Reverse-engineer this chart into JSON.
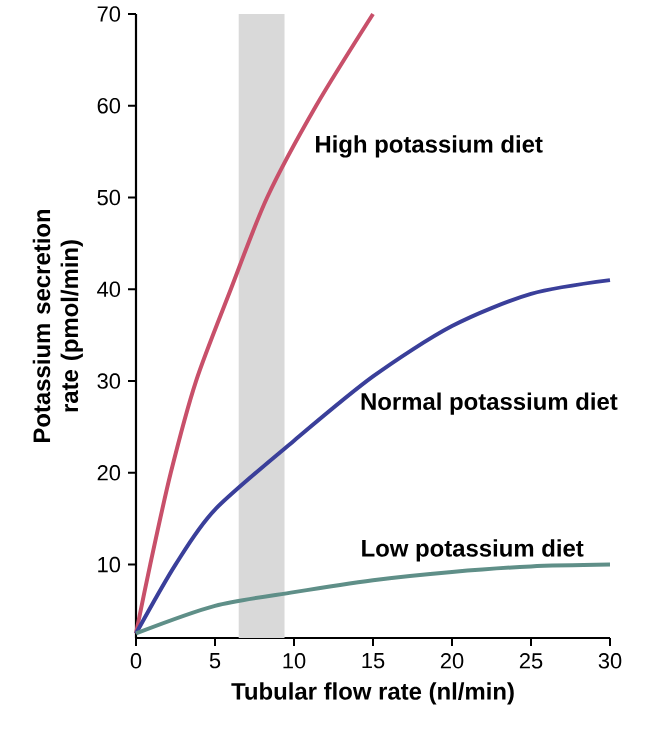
{
  "chart_data": {
    "type": "line",
    "xlabel": "Tubular flow rate (nl/min)",
    "ylabel": "Potassium secretion rate (pmol/min)",
    "xlim": [
      0,
      30
    ],
    "xticks": [
      0,
      5,
      10,
      15,
      20,
      25,
      30
    ],
    "ylim": [
      2,
      70
    ],
    "yticks": [
      10,
      20,
      30,
      40,
      50,
      60,
      70
    ],
    "grid": false,
    "marker": "none",
    "line_style": "solid",
    "bands": [
      {
        "axis": "x",
        "from": 6.5,
        "to": 9.4,
        "color": "#d9d9d9"
      }
    ],
    "series": [
      {
        "name": "High potassium diet",
        "color": "#c8506a",
        "x": [
          0,
          0.9,
          2.2,
          3.8,
          6.0,
          8.3,
          11.4,
          15
        ],
        "values": [
          2.5,
          10,
          20,
          30,
          40,
          50,
          60,
          70
        ]
      },
      {
        "name": "Normal potassium diet",
        "color": "#3a3f9a",
        "x": [
          0,
          2.5,
          5,
          10,
          15,
          20,
          25,
          30
        ],
        "values": [
          2.5,
          10,
          16,
          23.5,
          30.5,
          36,
          39.5,
          41
        ]
      },
      {
        "name": "Low potassium diet",
        "color": "#5f8f88",
        "x": [
          0,
          5,
          10,
          15,
          20,
          25,
          30
        ],
        "values": [
          2.5,
          5.5,
          7,
          8.3,
          9.2,
          9.8,
          10
        ]
      }
    ]
  }
}
